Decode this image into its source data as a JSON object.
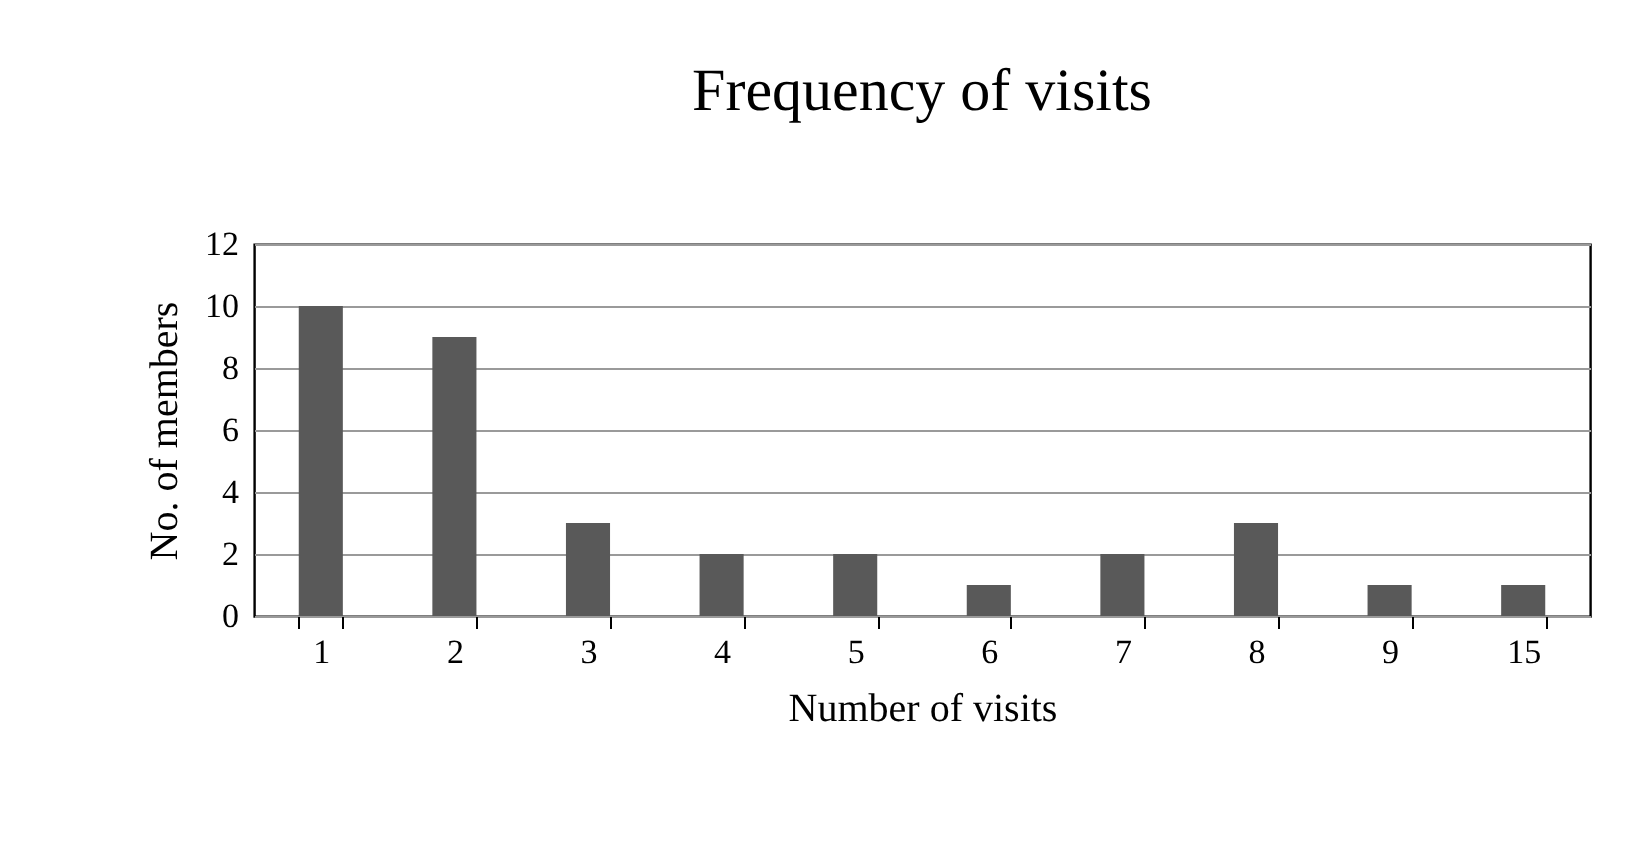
{
  "chart_data": {
    "type": "bar",
    "title": "Frequency of visits",
    "xlabel": "Number of visits",
    "ylabel": "No. of members",
    "categories": [
      "1",
      "2",
      "3",
      "4",
      "5",
      "6",
      "7",
      "8",
      "9",
      "15"
    ],
    "values": [
      10,
      9,
      3,
      2,
      2,
      1,
      2,
      3,
      1,
      1
    ],
    "color": "#595959",
    "ylim": [
      0,
      12
    ],
    "yticks": [
      0,
      2,
      4,
      6,
      8,
      10,
      12
    ],
    "grid": "y"
  }
}
